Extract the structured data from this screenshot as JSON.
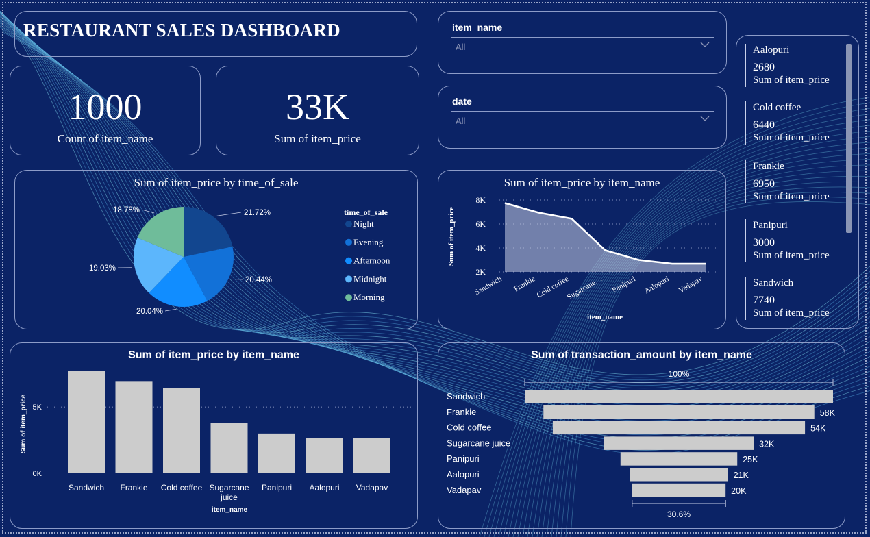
{
  "title": "RESTAURANT SALES DASHBOARD",
  "kpis": [
    {
      "value": "1000",
      "label": "Count of item_name"
    },
    {
      "value": "33K",
      "label": "Sum of item_price"
    }
  ],
  "slicers": [
    {
      "label": "item_name",
      "value": "All"
    },
    {
      "label": "date",
      "value": "All"
    }
  ],
  "multirow": [
    {
      "name": "Aalopuri",
      "value": "2680",
      "label": "Sum of item_price"
    },
    {
      "name": "Cold coffee",
      "value": "6440",
      "label": "Sum of item_price"
    },
    {
      "name": "Frankie",
      "value": "6950",
      "label": "Sum of item_price"
    },
    {
      "name": "Panipuri",
      "value": "3000",
      "label": "Sum of item_price"
    },
    {
      "name": "Sandwich",
      "value": "7740",
      "label": "Sum of item_price"
    }
  ],
  "pie": {
    "title": "Sum of item_price by time_of_sale",
    "legend_title": "time_of_sale",
    "slices": [
      {
        "name": "Night",
        "pct": 21.72,
        "label": "21.72%",
        "color": "#12468f"
      },
      {
        "name": "Evening",
        "pct": 20.44,
        "label": "20.44%",
        "color": "#1271d8"
      },
      {
        "name": "Afternoon",
        "pct": 20.04,
        "label": "20.04%",
        "color": "#118dff"
      },
      {
        "name": "Midnight",
        "pct": 19.03,
        "label": "19.03%",
        "color": "#5cb6fc"
      },
      {
        "name": "Morning",
        "pct": 18.78,
        "label": "18.78%",
        "color": "#6fbc9a"
      }
    ]
  },
  "area": {
    "title": "Sum of item_price by item_name",
    "xlabel": "item_name",
    "ylabel": "Sum of item_price",
    "ticks": [
      "2K",
      "4K",
      "6K",
      "8K"
    ]
  },
  "bar": {
    "title": "Sum of item_price by item_name",
    "xlabel": "item_name",
    "ylabel": "Sum of item_price",
    "ticks": [
      "0K",
      "5K"
    ]
  },
  "funnel": {
    "title": "Sum of transaction_amount by item_name",
    "top_label": "100%",
    "bottom_label": "30.6%"
  },
  "chart_data": [
    {
      "type": "pie",
      "title": "Sum of item_price by time_of_sale",
      "categories": [
        "Night",
        "Evening",
        "Afternoon",
        "Midnight",
        "Morning"
      ],
      "values": [
        21.72,
        20.44,
        20.04,
        19.03,
        18.78
      ],
      "legend": "right"
    },
    {
      "type": "area",
      "title": "Sum of item_price by item_name",
      "xlabel": "item_name",
      "ylabel": "Sum of item_price",
      "categories": [
        "Sandwich",
        "Frankie",
        "Cold coffee",
        "Sugarcane…",
        "Panipuri",
        "Aalopuri",
        "Vadapav"
      ],
      "values": [
        7740,
        6950,
        6440,
        3800,
        3000,
        2680,
        2680
      ],
      "ylim": [
        2000,
        8000
      ]
    },
    {
      "type": "bar",
      "title": "Sum of item_price by item_name",
      "xlabel": "item_name",
      "ylabel": "Sum of item_price",
      "categories": [
        "Sandwich",
        "Frankie",
        "Cold coffee",
        "Sugarcane juice",
        "Panipuri",
        "Aalopuri",
        "Vadapav"
      ],
      "values": [
        7740,
        6950,
        6440,
        3800,
        3000,
        2680,
        2680
      ],
      "ylim": [
        0,
        8000
      ]
    },
    {
      "type": "bar",
      "title": "Sum of transaction_amount by item_name",
      "categories": [
        "Sandwich",
        "Frankie",
        "Cold coffee",
        "Sugarcane juice",
        "Panipuri",
        "Aalopuri",
        "Vadapav"
      ],
      "values": [
        66000,
        58000,
        54000,
        32000,
        25000,
        21000,
        20000
      ],
      "labels": [
        "",
        "58K",
        "54K",
        "32K",
        "25K",
        "21K",
        "20K"
      ]
    }
  ]
}
